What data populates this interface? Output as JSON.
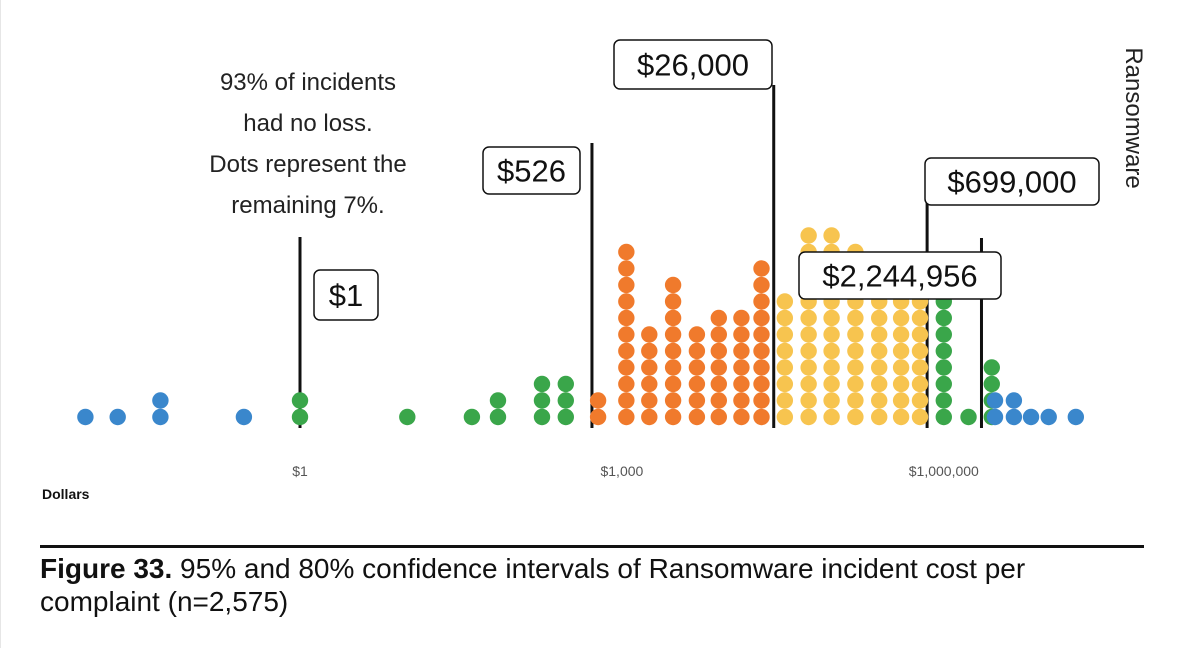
{
  "chart_data": {
    "type": "dot plot",
    "x_scale": "log",
    "x_label": "Dollars",
    "category_label": "Ransomware",
    "x_ticks": [
      {
        "label": "$1",
        "value": 1
      },
      {
        "label": "$1,000",
        "value": 1000
      },
      {
        "label": "$1,000,000",
        "value": 1000000
      }
    ],
    "note": [
      "93% of incidents",
      "had no loss.",
      "Dots represent the",
      "remaining 7%."
    ],
    "markers": [
      {
        "label": "$1",
        "value": 1
      },
      {
        "label": "$526",
        "value": 526
      },
      {
        "label": "$26,000",
        "value": 26000
      },
      {
        "label": "$2,244,956",
        "value": 2244956
      },
      {
        "label": "$699,000",
        "value": 699000
      }
    ],
    "band_colors": {
      "outside_95": "#3a87cc",
      "ci_95": "#3aa64a",
      "ci_80": "#f07a2c",
      "ci_80_upper": "#f7c44f"
    },
    "columns": [
      {
        "x": 0.01,
        "count": 1,
        "band": "outside_95"
      },
      {
        "x": 0.02,
        "count": 1,
        "band": "outside_95"
      },
      {
        "x": 0.05,
        "count": 2,
        "band": "outside_95"
      },
      {
        "x": 0.3,
        "count": 1,
        "band": "outside_95"
      },
      {
        "x": 1,
        "count": 2,
        "band": "ci_95"
      },
      {
        "x": 10,
        "count": 1,
        "band": "ci_95"
      },
      {
        "x": 40,
        "count": 1,
        "band": "ci_95"
      },
      {
        "x": 70,
        "count": 2,
        "band": "ci_95"
      },
      {
        "x": 180,
        "count": 3,
        "band": "ci_95"
      },
      {
        "x": 300,
        "count": 3,
        "band": "ci_95"
      },
      {
        "x": 600,
        "count": 2,
        "band": "ci_80"
      },
      {
        "x": 1100,
        "count": 11,
        "band": "ci_80"
      },
      {
        "x": 1800,
        "count": 6,
        "band": "ci_80"
      },
      {
        "x": 3000,
        "count": 9,
        "band": "ci_80"
      },
      {
        "x": 5000,
        "count": 6,
        "band": "ci_80"
      },
      {
        "x": 8000,
        "count": 7,
        "band": "ci_80"
      },
      {
        "x": 13000,
        "count": 7,
        "band": "ci_80"
      },
      {
        "x": 20000,
        "count": 10,
        "band": "ci_80"
      },
      {
        "x": 33000,
        "count": 8,
        "band": "ci_80_upper"
      },
      {
        "x": 55000,
        "count": 12,
        "band": "ci_80_upper"
      },
      {
        "x": 90000,
        "count": 12,
        "band": "ci_80_upper"
      },
      {
        "x": 150000,
        "count": 11,
        "band": "ci_80_upper"
      },
      {
        "x": 250000,
        "count": 9,
        "band": "ci_80_upper"
      },
      {
        "x": 400000,
        "count": 8,
        "band": "ci_80_upper"
      },
      {
        "x": 600000,
        "count": 9,
        "band": "ci_80_upper"
      },
      {
        "x": 1000000,
        "count": 10,
        "band": "ci_95"
      },
      {
        "x": 1700000,
        "count": 1,
        "band": "ci_95"
      },
      {
        "x": 2800000,
        "count": 4,
        "band": "ci_95"
      },
      {
        "x": 3000000,
        "count": 2,
        "band": "outside_95"
      },
      {
        "x": 4500000,
        "count": 2,
        "band": "outside_95"
      },
      {
        "x": 6500000,
        "count": 1,
        "band": "outside_95"
      },
      {
        "x": 9500000,
        "count": 1,
        "band": "outside_95"
      },
      {
        "x": 17000000,
        "count": 1,
        "band": "outside_95"
      }
    ]
  },
  "caption": {
    "figure_number": "Figure 33.",
    "text": " 95% and 80% confidence intervals of Ransomware incident cost per complaint (n=2,575)"
  }
}
